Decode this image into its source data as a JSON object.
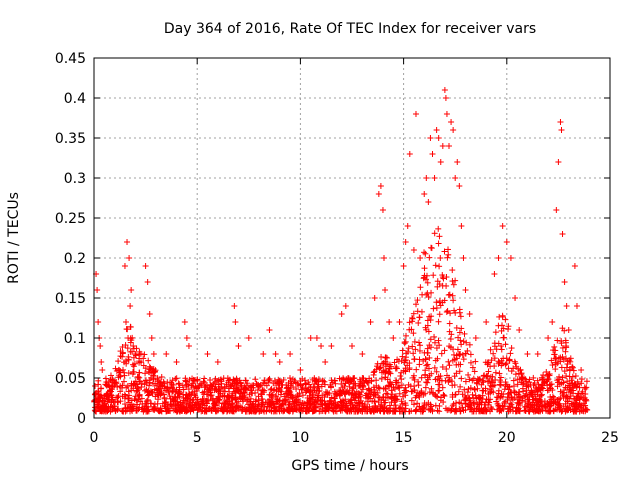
{
  "chart_data": {
    "type": "scatter",
    "title": "Day 364 of 2016, Rate Of TEC Index for receiver vars",
    "xlabel": "GPS time / hours",
    "ylabel": "ROTI / TECUs",
    "xlim": [
      0,
      25
    ],
    "ylim": [
      0,
      0.45
    ],
    "x_ticks": [
      0,
      5,
      10,
      15,
      20,
      25
    ],
    "x_tick_labels": [
      "0",
      "5",
      "10",
      "15",
      "20",
      "25"
    ],
    "y_ticks": [
      0,
      0.05,
      0.1,
      0.15,
      0.2,
      0.25,
      0.3,
      0.35,
      0.4,
      0.45
    ],
    "y_tick_labels": [
      "0",
      "0.05",
      "0.1",
      "0.15",
      "0.2",
      "0.25",
      "0.3",
      "0.35",
      "0.4",
      "0.45"
    ],
    "grid": true,
    "marker": "+",
    "color": "#ff0000",
    "series": [
      {
        "name": "ROTI",
        "points": [
          [
            0.1,
            0.18
          ],
          [
            0.15,
            0.16
          ],
          [
            0.2,
            0.12
          ],
          [
            0.25,
            0.1
          ],
          [
            0.3,
            0.09
          ],
          [
            0.35,
            0.07
          ],
          [
            0.4,
            0.06
          ],
          [
            0.05,
            0.04
          ],
          [
            1.5,
            0.19
          ],
          [
            1.6,
            0.22
          ],
          [
            1.7,
            0.2
          ],
          [
            1.8,
            0.16
          ],
          [
            1.75,
            0.14
          ],
          [
            1.55,
            0.12
          ],
          [
            1.65,
            0.1
          ],
          [
            1.9,
            0.09
          ],
          [
            2.0,
            0.08
          ],
          [
            2.5,
            0.19
          ],
          [
            2.6,
            0.17
          ],
          [
            2.7,
            0.13
          ],
          [
            2.8,
            0.1
          ],
          [
            2.9,
            0.08
          ],
          [
            3.5,
            0.08
          ],
          [
            4.0,
            0.07
          ],
          [
            4.4,
            0.12
          ],
          [
            4.5,
            0.1
          ],
          [
            4.6,
            0.09
          ],
          [
            5.5,
            0.08
          ],
          [
            6.0,
            0.07
          ],
          [
            6.8,
            0.14
          ],
          [
            6.85,
            0.12
          ],
          [
            7.0,
            0.09
          ],
          [
            7.5,
            0.1
          ],
          [
            8.2,
            0.08
          ],
          [
            8.5,
            0.11
          ],
          [
            8.8,
            0.08
          ],
          [
            9.0,
            0.07
          ],
          [
            9.5,
            0.08
          ],
          [
            10.0,
            0.06
          ],
          [
            10.5,
            0.1
          ],
          [
            10.8,
            0.1
          ],
          [
            11.0,
            0.09
          ],
          [
            11.2,
            0.07
          ],
          [
            11.5,
            0.09
          ],
          [
            12.0,
            0.13
          ],
          [
            12.2,
            0.14
          ],
          [
            12.5,
            0.09
          ],
          [
            13.0,
            0.08
          ],
          [
            13.4,
            0.12
          ],
          [
            13.6,
            0.15
          ],
          [
            13.8,
            0.28
          ],
          [
            13.9,
            0.29
          ],
          [
            14.0,
            0.26
          ],
          [
            14.05,
            0.2
          ],
          [
            14.1,
            0.16
          ],
          [
            14.3,
            0.12
          ],
          [
            14.5,
            0.1
          ],
          [
            14.8,
            0.12
          ],
          [
            15.0,
            0.19
          ],
          [
            15.1,
            0.22
          ],
          [
            15.2,
            0.24
          ],
          [
            15.3,
            0.33
          ],
          [
            15.5,
            0.21
          ],
          [
            15.6,
            0.38
          ],
          [
            15.8,
            0.2
          ],
          [
            16.0,
            0.28
          ],
          [
            16.1,
            0.3
          ],
          [
            16.2,
            0.27
          ],
          [
            16.3,
            0.35
          ],
          [
            16.4,
            0.33
          ],
          [
            16.5,
            0.3
          ],
          [
            16.6,
            0.36
          ],
          [
            16.7,
            0.35
          ],
          [
            16.8,
            0.32
          ],
          [
            16.9,
            0.34
          ],
          [
            17.0,
            0.41
          ],
          [
            17.05,
            0.4
          ],
          [
            17.1,
            0.38
          ],
          [
            17.2,
            0.34
          ],
          [
            17.3,
            0.37
          ],
          [
            17.4,
            0.36
          ],
          [
            17.5,
            0.3
          ],
          [
            17.6,
            0.32
          ],
          [
            17.7,
            0.29
          ],
          [
            17.8,
            0.24
          ],
          [
            17.9,
            0.2
          ],
          [
            18.0,
            0.16
          ],
          [
            18.2,
            0.13
          ],
          [
            18.5,
            0.1
          ],
          [
            19.0,
            0.12
          ],
          [
            19.4,
            0.18
          ],
          [
            19.6,
            0.2
          ],
          [
            19.8,
            0.24
          ],
          [
            20.0,
            0.22
          ],
          [
            20.2,
            0.2
          ],
          [
            20.4,
            0.15
          ],
          [
            20.6,
            0.11
          ],
          [
            21.0,
            0.08
          ],
          [
            21.5,
            0.08
          ],
          [
            22.0,
            0.1
          ],
          [
            22.2,
            0.12
          ],
          [
            22.4,
            0.26
          ],
          [
            22.5,
            0.32
          ],
          [
            22.6,
            0.37
          ],
          [
            22.65,
            0.36
          ],
          [
            22.7,
            0.23
          ],
          [
            22.8,
            0.17
          ],
          [
            22.9,
            0.14
          ],
          [
            23.0,
            0.11
          ],
          [
            23.3,
            0.19
          ],
          [
            23.4,
            0.14
          ],
          [
            23.6,
            0.06
          ],
          [
            23.8,
            0.03
          ]
        ]
      }
    ]
  }
}
